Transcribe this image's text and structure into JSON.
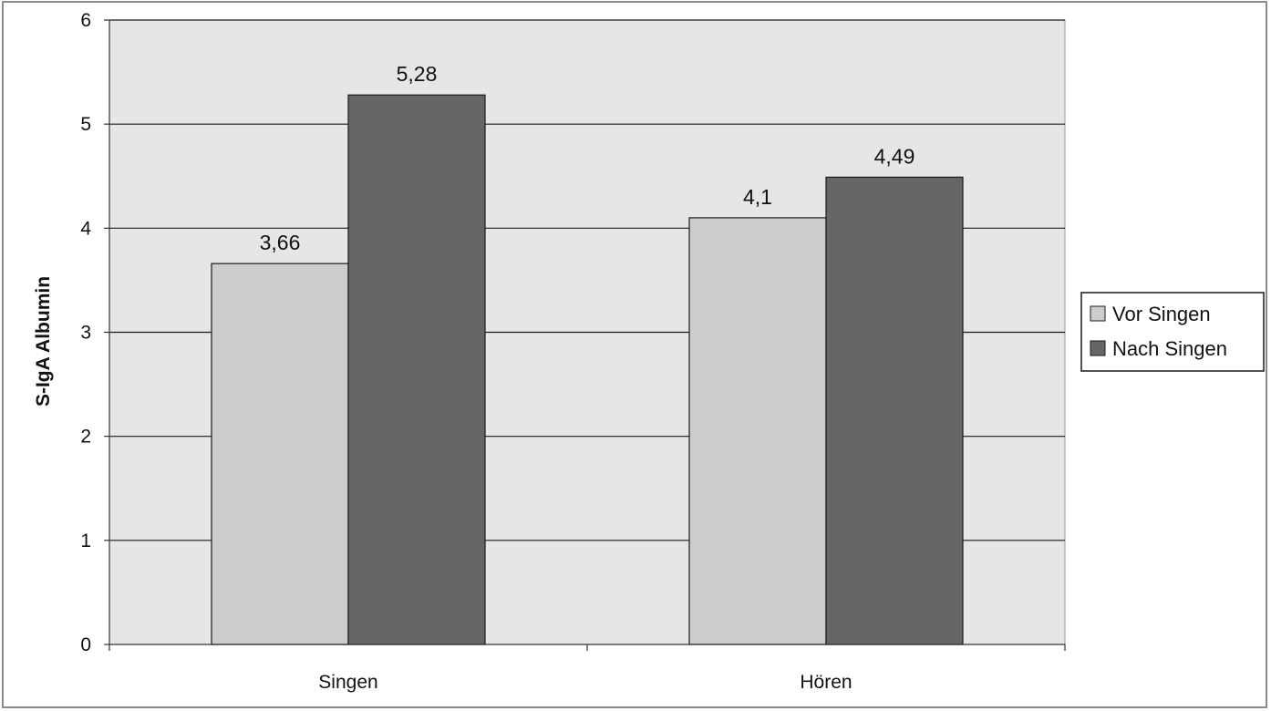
{
  "chart_data": {
    "type": "bar",
    "categories": [
      "Singen",
      "Hören"
    ],
    "series": [
      {
        "name": "Vor Singen",
        "values": [
          3.66,
          4.1
        ],
        "labels": [
          "3,66",
          "4,1"
        ],
        "color": "#cccccc"
      },
      {
        "name": "Nach Singen",
        "values": [
          5.28,
          4.49
        ],
        "labels": [
          "5,28",
          "4,49"
        ],
        "color": "#666666"
      }
    ],
    "ylabel": "S-IgA Albumin",
    "ylim": [
      0,
      6
    ],
    "yticks": [
      0,
      1,
      2,
      3,
      4,
      5,
      6
    ],
    "grid": true,
    "plot_background": "#e6e6e6",
    "legend_position": "right"
  }
}
